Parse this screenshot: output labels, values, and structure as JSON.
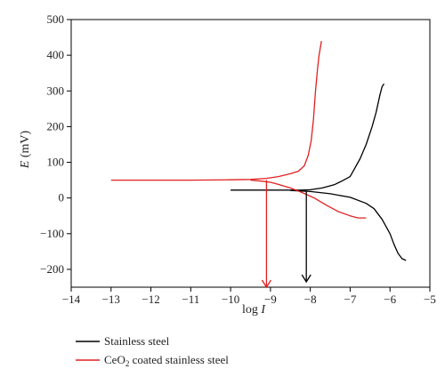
{
  "chart_data": {
    "type": "line",
    "xlabel": {
      "base": "log",
      "var": "I"
    },
    "ylabel": {
      "var": "E",
      "unit": " (mV)"
    },
    "xlim": [
      -14,
      -5
    ],
    "ylim": [
      -250,
      500
    ],
    "xticks": [
      -14,
      -13,
      -12,
      -11,
      -10,
      -9,
      -8,
      -7,
      -6,
      -5
    ],
    "yticks": [
      -200,
      -100,
      0,
      100,
      200,
      300,
      400,
      500
    ],
    "grid": false,
    "legend_position": "bottom-left",
    "series": [
      {
        "name": "Stainless steel",
        "color": "#000000",
        "anodic": [
          [
            -10,
            22
          ],
          [
            -9,
            22
          ],
          [
            -8.5,
            22
          ],
          [
            -8.2,
            22
          ],
          [
            -8,
            23
          ],
          [
            -7.7,
            28
          ],
          [
            -7.4,
            37
          ],
          [
            -7.2,
            48
          ],
          [
            -7.0,
            60
          ],
          [
            -6.9,
            80
          ],
          [
            -6.75,
            110
          ],
          [
            -6.6,
            150
          ],
          [
            -6.45,
            200
          ],
          [
            -6.35,
            240
          ],
          [
            -6.25,
            290
          ],
          [
            -6.2,
            312
          ],
          [
            -6.15,
            320
          ]
        ],
        "cathodic": [
          [
            -8.5,
            21
          ],
          [
            -8.0,
            18
          ],
          [
            -7.5,
            12
          ],
          [
            -7.0,
            2
          ],
          [
            -6.6,
            -15
          ],
          [
            -6.4,
            -30
          ],
          [
            -6.2,
            -60
          ],
          [
            -6.0,
            -100
          ],
          [
            -5.9,
            -130
          ],
          [
            -5.8,
            -155
          ],
          [
            -5.7,
            -170
          ],
          [
            -5.6,
            -175
          ]
        ],
        "ecorr_mv": 20,
        "log_icorr": -8.1
      },
      {
        "name": "CeO2 coated stainless steel",
        "color": "#e02020",
        "anodic": [
          [
            -13,
            50
          ],
          [
            -12,
            50
          ],
          [
            -11,
            50
          ],
          [
            -10,
            51
          ],
          [
            -9.5,
            52
          ],
          [
            -9.1,
            55
          ],
          [
            -8.8,
            60
          ],
          [
            -8.5,
            68
          ],
          [
            -8.3,
            75
          ],
          [
            -8.15,
            90
          ],
          [
            -8.05,
            120
          ],
          [
            -7.98,
            160
          ],
          [
            -7.92,
            220
          ],
          [
            -7.87,
            300
          ],
          [
            -7.82,
            360
          ],
          [
            -7.78,
            400
          ],
          [
            -7.72,
            440
          ]
        ],
        "cathodic": [
          [
            -9.5,
            50
          ],
          [
            -9.2,
            47
          ],
          [
            -9.0,
            44
          ],
          [
            -8.8,
            38
          ],
          [
            -8.5,
            28
          ],
          [
            -8.2,
            15
          ],
          [
            -7.9,
            0
          ],
          [
            -7.6,
            -20
          ],
          [
            -7.3,
            -38
          ],
          [
            -7.0,
            -50
          ],
          [
            -6.8,
            -56
          ],
          [
            -6.6,
            -56
          ]
        ],
        "ecorr_mv": 50,
        "log_icorr": -9.1
      }
    ],
    "annotations": [
      {
        "type": "arrow",
        "color": "#e02020",
        "x": -9.1,
        "from_y": 50,
        "to_y": -250
      },
      {
        "type": "arrow",
        "color": "#000000",
        "x": -8.1,
        "from_y": 20,
        "to_y": -235
      }
    ]
  },
  "legend": [
    {
      "text": "Stainless steel",
      "color": "#000000"
    },
    {
      "prefix": "CeO",
      "sub": "2",
      "suffix": " coated stainless steel",
      "color": "#e02020"
    }
  ]
}
